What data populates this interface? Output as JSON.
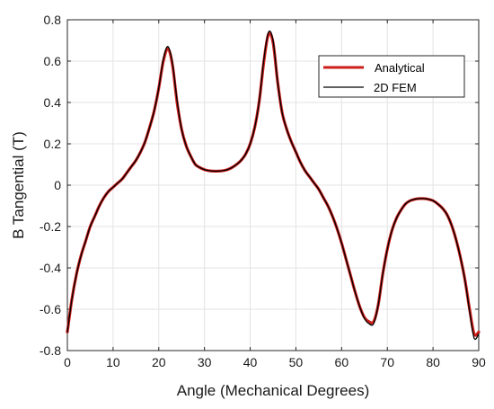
{
  "chart_data": {
    "type": "line",
    "title": "",
    "xlabel": "Angle (Mechanical Degrees)",
    "ylabel": "B Tangential (T)",
    "xlim": [
      0,
      90
    ],
    "ylim": [
      -0.8,
      0.8
    ],
    "xticks": [
      0,
      10,
      20,
      30,
      40,
      50,
      60,
      70,
      80,
      90
    ],
    "yticks": [
      0.8,
      0.6,
      0.4,
      0.2,
      0,
      -0.2,
      -0.4,
      -0.6,
      -0.8
    ],
    "xtick_labels": [
      "0",
      "10",
      "20",
      "30",
      "40",
      "50",
      "60",
      "70",
      "80",
      "90"
    ],
    "ytick_labels": [
      "0.8",
      "0.6",
      "0.4",
      "0.2",
      "0",
      "-0.2",
      "-0.4",
      "-0.6",
      "-0.8"
    ],
    "grid": true,
    "legend_position": "top-right",
    "series": [
      {
        "name": "Analytical",
        "color": "#cc1f1a",
        "x": [
          0,
          1,
          2,
          3,
          4,
          5,
          6,
          7,
          8,
          9,
          10,
          11,
          12,
          13,
          14,
          15,
          16,
          17,
          18,
          19,
          20,
          21,
          22,
          23,
          24,
          25,
          26,
          27,
          28,
          29,
          30,
          31,
          32,
          33,
          34,
          35,
          36,
          37,
          38,
          39,
          40,
          41,
          42,
          43,
          44,
          45,
          46,
          47,
          48,
          49,
          50,
          51,
          52,
          53,
          54,
          55,
          56,
          57,
          58,
          59,
          60,
          61,
          62,
          63,
          64,
          65,
          66,
          67,
          68,
          69,
          70,
          71,
          72,
          73,
          74,
          75,
          76,
          77,
          78,
          79,
          80,
          81,
          82,
          83,
          84,
          85,
          86,
          87,
          88,
          89,
          90
        ],
        "y": [
          -0.71,
          -0.55,
          -0.43,
          -0.34,
          -0.27,
          -0.2,
          -0.15,
          -0.1,
          -0.06,
          -0.03,
          -0.01,
          0.01,
          0.03,
          0.06,
          0.09,
          0.12,
          0.16,
          0.21,
          0.28,
          0.36,
          0.47,
          0.6,
          0.66,
          0.58,
          0.4,
          0.27,
          0.19,
          0.14,
          0.1,
          0.085,
          0.075,
          0.07,
          0.068,
          0.068,
          0.07,
          0.075,
          0.085,
          0.1,
          0.12,
          0.15,
          0.2,
          0.28,
          0.41,
          0.6,
          0.73,
          0.69,
          0.5,
          0.35,
          0.27,
          0.21,
          0.16,
          0.11,
          0.07,
          0.04,
          0.01,
          -0.02,
          -0.06,
          -0.1,
          -0.15,
          -0.21,
          -0.28,
          -0.36,
          -0.44,
          -0.52,
          -0.59,
          -0.64,
          -0.66,
          -0.66,
          -0.58,
          -0.43,
          -0.31,
          -0.22,
          -0.16,
          -0.12,
          -0.09,
          -0.075,
          -0.068,
          -0.065,
          -0.065,
          -0.068,
          -0.075,
          -0.09,
          -0.11,
          -0.14,
          -0.19,
          -0.26,
          -0.35,
          -0.46,
          -0.6,
          -0.72,
          -0.71
        ]
      },
      {
        "name": "2D FEM",
        "color": "#000000",
        "x": [
          0,
          1,
          2,
          3,
          4,
          5,
          6,
          7,
          8,
          9,
          10,
          11,
          12,
          13,
          14,
          15,
          16,
          17,
          18,
          19,
          20,
          21,
          22,
          23,
          24,
          25,
          26,
          27,
          28,
          29,
          30,
          31,
          32,
          33,
          34,
          35,
          36,
          37,
          38,
          39,
          40,
          41,
          42,
          43,
          44,
          45,
          46,
          47,
          48,
          49,
          50,
          51,
          52,
          53,
          54,
          55,
          56,
          57,
          58,
          59,
          60,
          61,
          62,
          63,
          64,
          65,
          66,
          67,
          68,
          69,
          70,
          71,
          72,
          73,
          74,
          75,
          76,
          77,
          78,
          79,
          80,
          81,
          82,
          83,
          84,
          85,
          86,
          87,
          88,
          89,
          90
        ],
        "y": [
          -0.71,
          -0.55,
          -0.43,
          -0.34,
          -0.27,
          -0.2,
          -0.15,
          -0.1,
          -0.06,
          -0.03,
          -0.01,
          0.01,
          0.03,
          0.06,
          0.09,
          0.12,
          0.16,
          0.21,
          0.28,
          0.36,
          0.47,
          0.61,
          0.67,
          0.59,
          0.41,
          0.27,
          0.19,
          0.14,
          0.1,
          0.085,
          0.075,
          0.07,
          0.068,
          0.068,
          0.07,
          0.075,
          0.085,
          0.1,
          0.12,
          0.15,
          0.2,
          0.28,
          0.41,
          0.61,
          0.74,
          0.7,
          0.5,
          0.35,
          0.27,
          0.21,
          0.16,
          0.11,
          0.07,
          0.04,
          0.01,
          -0.02,
          -0.06,
          -0.1,
          -0.15,
          -0.21,
          -0.28,
          -0.36,
          -0.44,
          -0.52,
          -0.59,
          -0.645,
          -0.67,
          -0.67,
          -0.58,
          -0.43,
          -0.31,
          -0.22,
          -0.16,
          -0.12,
          -0.09,
          -0.075,
          -0.068,
          -0.065,
          -0.065,
          -0.068,
          -0.075,
          -0.09,
          -0.11,
          -0.14,
          -0.19,
          -0.26,
          -0.35,
          -0.46,
          -0.61,
          -0.74,
          -0.72
        ]
      }
    ]
  }
}
